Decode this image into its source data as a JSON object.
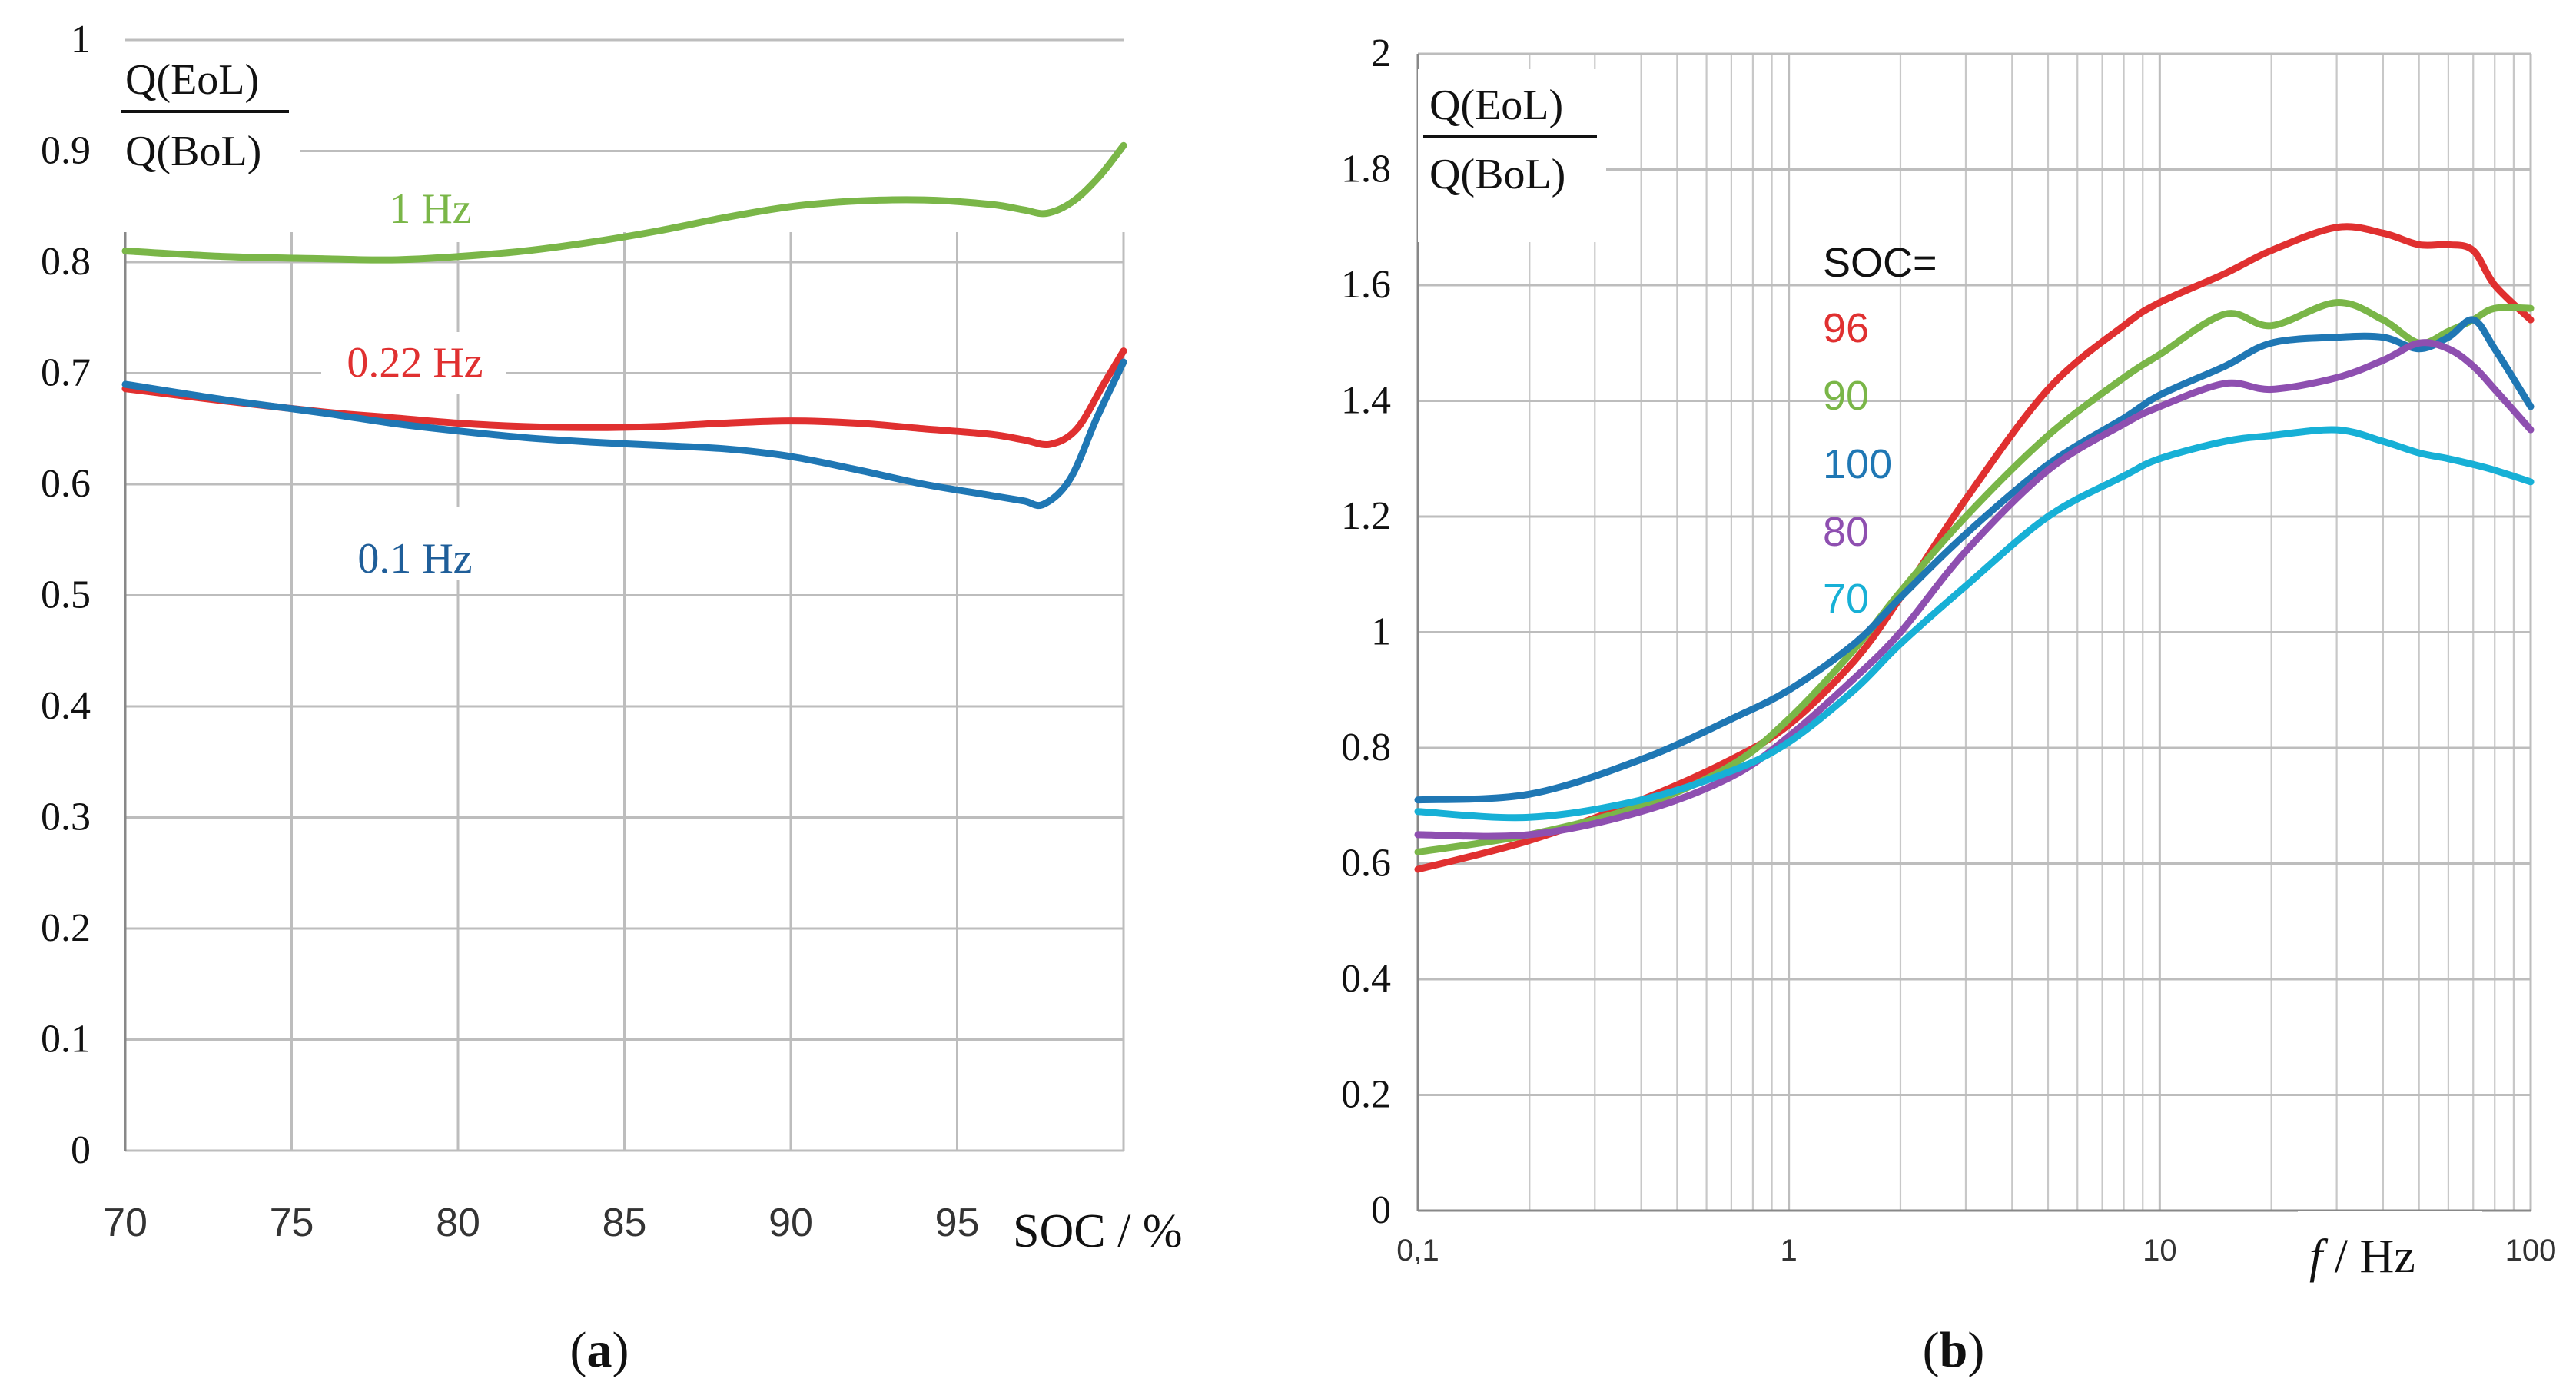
{
  "chart_data": [
    {
      "id": "a",
      "type": "line",
      "caption": {
        "open": "(",
        "letter": "a",
        "close": ")"
      },
      "ylabel": {
        "numerator": "Q(EoL)",
        "denominator": "Q(BoL)"
      },
      "xlabel": "SOC / %",
      "xlim": [
        70,
        100
      ],
      "ylim": [
        0,
        1
      ],
      "xticks": [
        70,
        75,
        80,
        85,
        90,
        95
      ],
      "xtick_labels": [
        "70",
        "75",
        "80",
        "85",
        "90",
        "95"
      ],
      "yticks": [
        0,
        0.1,
        0.2,
        0.3,
        0.4,
        0.5,
        0.6,
        0.7,
        0.8,
        0.9,
        1
      ],
      "ytick_labels": [
        "0",
        "0.1",
        "0.2",
        "0.3",
        "0.4",
        "0.5",
        "0.6",
        "0.7",
        "0.8",
        "0.9",
        "1"
      ],
      "grid": true,
      "series": [
        {
          "name": "1 Hz",
          "color": "#7ab648",
          "x": [
            70,
            73,
            76,
            78,
            80,
            82,
            84,
            86,
            88,
            90,
            92,
            94,
            96,
            97,
            97.7,
            98.5,
            99.3,
            100
          ],
          "y": [
            0.81,
            0.805,
            0.803,
            0.802,
            0.805,
            0.81,
            0.818,
            0.828,
            0.84,
            0.85,
            0.855,
            0.856,
            0.852,
            0.847,
            0.844,
            0.855,
            0.878,
            0.905
          ]
        },
        {
          "name": "0.22 Hz",
          "color": "#e03030",
          "x": [
            70,
            73,
            76,
            78,
            80,
            82,
            84,
            86,
            88,
            90,
            92,
            94,
            96,
            97,
            97.8,
            98.6,
            99.4,
            100
          ],
          "y": [
            0.686,
            0.675,
            0.665,
            0.66,
            0.655,
            0.652,
            0.651,
            0.652,
            0.655,
            0.657,
            0.655,
            0.65,
            0.645,
            0.64,
            0.636,
            0.65,
            0.69,
            0.72
          ]
        },
        {
          "name": "0.1 Hz",
          "color": "#1f77b4",
          "x": [
            70,
            73,
            76,
            78,
            80,
            82,
            84,
            86,
            88,
            90,
            92,
            94,
            96,
            97,
            97.6,
            98.4,
            99.2,
            100
          ],
          "y": [
            0.69,
            0.676,
            0.664,
            0.655,
            0.648,
            0.642,
            0.638,
            0.635,
            0.632,
            0.625,
            0.613,
            0.6,
            0.59,
            0.585,
            0.582,
            0.605,
            0.66,
            0.71
          ]
        }
      ],
      "annotations": [
        {
          "text": "1 Hz",
          "color": "#7ab648"
        },
        {
          "text": "0.22 Hz",
          "color": "#e03030"
        },
        {
          "text": "0.1 Hz",
          "color": "#1f5e99"
        }
      ]
    },
    {
      "id": "b",
      "type": "line",
      "caption": {
        "open": "(",
        "letter": "b",
        "close": ")"
      },
      "ylabel": {
        "numerator": "Q(EoL)",
        "denominator": "Q(BoL)"
      },
      "xlabel": {
        "var": "f",
        "rest": " / Hz"
      },
      "xscale": "log",
      "xlim": [
        0.1,
        100
      ],
      "ylim": [
        0,
        2
      ],
      "xtick_labels": [
        "0,1",
        "1",
        "10",
        "100"
      ],
      "yticks": [
        0,
        0.2,
        0.4,
        0.6,
        0.8,
        1,
        1.2,
        1.4,
        1.6,
        1.8,
        2
      ],
      "ytick_labels": [
        "0",
        "0.2",
        "0.4",
        "0.6",
        "0.8",
        "1",
        "1.2",
        "1.4",
        "1.6",
        "1.8",
        "2"
      ],
      "grid": true,
      "legend_title": "SOC=",
      "series": [
        {
          "name": "96",
          "color": "#e03030",
          "x": [
            0.1,
            0.2,
            0.4,
            0.7,
            1,
            1.5,
            2,
            3,
            5,
            8,
            10,
            15,
            20,
            30,
            40,
            50,
            60,
            70,
            80,
            100
          ],
          "y": [
            0.59,
            0.64,
            0.71,
            0.78,
            0.84,
            0.95,
            1.06,
            1.23,
            1.42,
            1.53,
            1.57,
            1.62,
            1.66,
            1.7,
            1.69,
            1.67,
            1.67,
            1.66,
            1.6,
            1.54
          ]
        },
        {
          "name": "90",
          "color": "#7ab648",
          "x": [
            0.1,
            0.2,
            0.4,
            0.7,
            1,
            1.5,
            2,
            3,
            5,
            8,
            10,
            15,
            20,
            30,
            40,
            50,
            60,
            70,
            80,
            100
          ],
          "y": [
            0.62,
            0.65,
            0.7,
            0.77,
            0.85,
            0.97,
            1.07,
            1.2,
            1.34,
            1.44,
            1.48,
            1.55,
            1.53,
            1.57,
            1.54,
            1.5,
            1.52,
            1.54,
            1.56,
            1.56
          ]
        },
        {
          "name": "100",
          "color": "#1f77b4",
          "x": [
            0.1,
            0.2,
            0.4,
            0.7,
            1,
            1.5,
            2,
            3,
            5,
            8,
            10,
            15,
            20,
            30,
            40,
            50,
            60,
            70,
            80,
            100
          ],
          "y": [
            0.71,
            0.72,
            0.78,
            0.85,
            0.9,
            0.98,
            1.06,
            1.17,
            1.29,
            1.37,
            1.41,
            1.46,
            1.5,
            1.51,
            1.51,
            1.49,
            1.51,
            1.54,
            1.49,
            1.39
          ]
        },
        {
          "name": "80",
          "color": "#8e4fb0",
          "x": [
            0.1,
            0.2,
            0.4,
            0.7,
            1,
            1.5,
            2,
            3,
            5,
            8,
            10,
            15,
            20,
            30,
            40,
            50,
            60,
            70,
            80,
            100
          ],
          "y": [
            0.65,
            0.65,
            0.69,
            0.75,
            0.82,
            0.92,
            1.0,
            1.14,
            1.28,
            1.36,
            1.39,
            1.43,
            1.42,
            1.44,
            1.47,
            1.5,
            1.49,
            1.46,
            1.42,
            1.35
          ]
        },
        {
          "name": "70",
          "color": "#17b0d6",
          "x": [
            0.1,
            0.2,
            0.4,
            0.7,
            1,
            1.5,
            2,
            3,
            5,
            8,
            10,
            15,
            20,
            30,
            40,
            50,
            60,
            70,
            80,
            100
          ],
          "y": [
            0.69,
            0.68,
            0.71,
            0.76,
            0.81,
            0.9,
            0.98,
            1.08,
            1.2,
            1.27,
            1.3,
            1.33,
            1.34,
            1.35,
            1.33,
            1.31,
            1.3,
            1.29,
            1.28,
            1.26
          ]
        }
      ]
    }
  ]
}
